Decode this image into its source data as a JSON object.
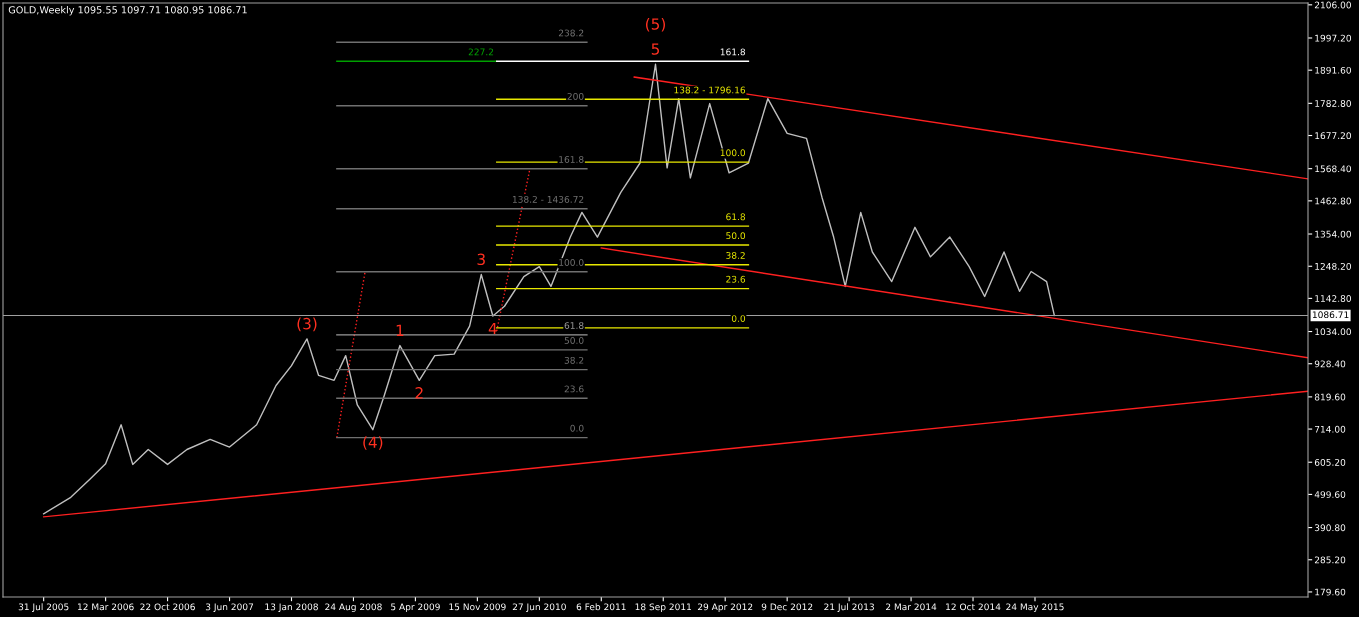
{
  "chart_data": {
    "type": "line",
    "title": "GOLD,Weekly 1095.55 1097.71 1080.95 1086.71",
    "xlim": [
      "2005-03-06",
      "2018-02-04"
    ],
    "ylim": [
      163,
      2112
    ],
    "xticks": [
      {
        "value": "2005-07-31",
        "label": "31 Jul 2005"
      },
      {
        "value": "2006-03-12",
        "label": "12 Mar 2006"
      },
      {
        "value": "2006-10-22",
        "label": "22 Oct 2006"
      },
      {
        "value": "2007-06-03",
        "label": "3 Jun 2007"
      },
      {
        "value": "2008-01-13",
        "label": "13 Jan 2008"
      },
      {
        "value": "2008-08-24",
        "label": "24 Aug 2008"
      },
      {
        "value": "2009-04-05",
        "label": "5 Apr 2009"
      },
      {
        "value": "2009-11-15",
        "label": "15 Nov 2009"
      },
      {
        "value": "2010-06-27",
        "label": "27 Jun 2010"
      },
      {
        "value": "2011-02-06",
        "label": "6 Feb 2011"
      },
      {
        "value": "2011-09-18",
        "label": "18 Sep 2011"
      },
      {
        "value": "2012-04-29",
        "label": "29 Apr 2012"
      },
      {
        "value": "2012-12-09",
        "label": "9 Dec 2012"
      },
      {
        "value": "2013-07-21",
        "label": "21 Jul 2013"
      },
      {
        "value": "2014-03-02",
        "label": "2 Mar 2014"
      },
      {
        "value": "2014-10-12",
        "label": "12 Oct 2014"
      },
      {
        "value": "2015-05-24",
        "label": "24 May 2015"
      }
    ],
    "yticks": [
      {
        "value": 2106,
        "label": "2106.00"
      },
      {
        "value": 1997.2,
        "label": "1997.20"
      },
      {
        "value": 1891.6,
        "label": "1891.60"
      },
      {
        "value": 1782.8,
        "label": "1782.80"
      },
      {
        "value": 1677.2,
        "label": "1677.20"
      },
      {
        "value": 1568.4,
        "label": "1568.40"
      },
      {
        "value": 1462.8,
        "label": "1462.80"
      },
      {
        "value": 1354,
        "label": "1354.00"
      },
      {
        "value": 1248.2,
        "label": "1248.20"
      },
      {
        "value": 1142.8,
        "label": "1142.80"
      },
      {
        "value": 1034,
        "label": "1034.00"
      },
      {
        "value": 928.4,
        "label": "928.40"
      },
      {
        "value": 819.6,
        "label": "819.60"
      },
      {
        "value": 714,
        "label": "714.00"
      },
      {
        "value": 605.2,
        "label": "605.20"
      },
      {
        "value": 499.6,
        "label": "499.60"
      },
      {
        "value": 390.8,
        "label": "390.80"
      },
      {
        "value": 285.2,
        "label": "285.20"
      },
      {
        "value": 179.6,
        "label": "179.60"
      }
    ],
    "grid": false,
    "marker": "none",
    "series": [
      {
        "color": "#c0c0c0",
        "x": [
          "2005-07-31",
          "2005-11-06",
          "2006-01-15",
          "2006-03-12",
          "2006-05-07",
          "2006-06-18",
          "2006-08-13",
          "2006-10-22",
          "2006-12-31",
          "2007-03-25",
          "2007-06-03",
          "2007-09-09",
          "2007-11-18",
          "2008-01-13",
          "2008-03-09",
          "2008-04-20",
          "2008-06-15",
          "2008-07-27",
          "2008-09-07",
          "2008-11-02",
          "2008-12-14",
          "2009-02-08",
          "2009-04-19",
          "2009-06-14",
          "2009-08-23",
          "2009-10-18",
          "2009-11-29",
          "2010-01-10",
          "2010-02-21",
          "2010-05-02",
          "2010-06-27",
          "2010-08-08",
          "2010-10-17",
          "2010-11-28",
          "2011-01-23",
          "2011-04-17",
          "2011-06-26",
          "2011-08-21",
          "2011-10-02",
          "2011-11-13",
          "2011-12-25",
          "2012-03-04",
          "2012-05-13",
          "2012-07-22",
          "2012-09-30",
          "2012-12-09",
          "2013-02-17",
          "2013-04-14",
          "2013-05-26",
          "2013-07-07",
          "2013-09-01",
          "2013-10-13",
          "2013-12-22",
          "2014-03-16",
          "2014-05-11",
          "2014-07-20",
          "2014-09-28",
          "2014-11-23",
          "2015-02-01",
          "2015-03-29",
          "2015-05-10",
          "2015-07-05",
          "2015-08-02"
        ],
        "values": [
          436,
          490,
          550,
          600,
          728,
          598,
          647,
          598,
          647,
          680,
          655,
          728,
          857,
          922,
          1010,
          890,
          874,
          955,
          793,
          712,
          826,
          988,
          874,
          955,
          960,
          1052,
          1221,
          1085,
          1117,
          1214,
          1247,
          1182,
          1344,
          1425,
          1344,
          1490,
          1587,
          1911,
          1571,
          1798,
          1538,
          1782,
          1555,
          1587,
          1798,
          1684,
          1668,
          1474,
          1344,
          1182,
          1425,
          1295,
          1198,
          1376,
          1279,
          1344,
          1247,
          1149,
          1295,
          1166,
          1231,
          1198,
          1087
        ]
      },
      {
        "color": "#ff2020",
        "x": [
          "2005-07-31",
          "2018-02-04"
        ],
        "values": [
          426,
          838
        ]
      },
      {
        "color": "#ff2020",
        "x": [
          "2011-02-06",
          "2018-02-04"
        ],
        "values": [
          1308,
          948
        ]
      },
      {
        "color": "#ff2020",
        "x": [
          "2011-06-05",
          "2018-02-04"
        ],
        "values": [
          1869,
          1535
        ]
      },
      {
        "color": "#ff2020",
        "line_style": "dotted",
        "x": [
          "2008-06-25",
          "2008-10-05"
        ],
        "values": [
          686,
          1230
        ]
      },
      {
        "color": "#ff2020",
        "line_style": "dotted",
        "x": [
          "2010-01-24",
          "2010-05-23"
        ],
        "values": [
          1036,
          1564
        ]
      },
      {
        "color": "#707070",
        "x": [
          "2008-06-25",
          "2010-12-16"
        ],
        "values": [
          1983,
          1983
        ]
      },
      {
        "color": "#00a000",
        "x": [
          "2008-06-25",
          "2010-01-24"
        ],
        "values": [
          1921,
          1921
        ]
      },
      {
        "color": "#707070",
        "x": [
          "2008-06-25",
          "2010-12-16"
        ],
        "values": [
          1775,
          1775
        ]
      },
      {
        "color": "#707070",
        "x": [
          "2008-06-25",
          "2010-12-16"
        ],
        "values": [
          1568,
          1568
        ]
      },
      {
        "color": "#707070",
        "x": [
          "2008-06-25",
          "2010-12-16"
        ],
        "values": [
          1437,
          1437
        ]
      },
      {
        "color": "#707070",
        "x": [
          "2008-06-25",
          "2010-12-16"
        ],
        "values": [
          1230,
          1230
        ]
      },
      {
        "color": "#9a9a9a",
        "x": [
          "2008-06-25",
          "2010-12-16"
        ],
        "values": [
          1023,
          1023
        ]
      },
      {
        "color": "#707070",
        "x": [
          "2008-06-25",
          "2010-12-16"
        ],
        "values": [
          974,
          974
        ]
      },
      {
        "color": "#707070",
        "x": [
          "2008-06-25",
          "2010-12-16"
        ],
        "values": [
          909,
          909
        ]
      },
      {
        "color": "#707070",
        "x": [
          "2008-06-25",
          "2010-12-16"
        ],
        "values": [
          815,
          815
        ]
      },
      {
        "color": "#707070",
        "x": [
          "2008-06-25",
          "2010-12-16"
        ],
        "values": [
          686,
          686
        ]
      },
      {
        "color": "#ffffff",
        "x": [
          "2010-01-24",
          "2012-07-22"
        ],
        "values": [
          1921,
          1921
        ]
      },
      {
        "color": "#e8e800",
        "x": [
          "2010-01-24",
          "2012-07-22"
        ],
        "values": [
          1796,
          1796
        ]
      },
      {
        "color": "#e8e800",
        "x": [
          "2010-01-24",
          "2012-07-22"
        ],
        "values": [
          1590,
          1590
        ]
      },
      {
        "color": "#e8e800",
        "x": [
          "2010-01-24",
          "2012-07-22"
        ],
        "values": [
          1380,
          1380
        ]
      },
      {
        "color": "#e8e800",
        "x": [
          "2010-01-24",
          "2012-07-22"
        ],
        "values": [
          1318,
          1318
        ]
      },
      {
        "color": "#e8e800",
        "x": [
          "2010-01-24",
          "2012-07-22"
        ],
        "values": [
          1253,
          1253
        ]
      },
      {
        "color": "#e8e800",
        "x": [
          "2010-01-24",
          "2012-07-22"
        ],
        "values": [
          1175,
          1175
        ]
      },
      {
        "color": "#e8e800",
        "x": [
          "2010-01-24",
          "2012-07-22"
        ],
        "values": [
          1046,
          1046
        ]
      }
    ],
    "ref_lines": [
      {
        "axis": "y",
        "value": 1086.71,
        "label": "1086.71",
        "color": "#a0a0a0"
      }
    ],
    "annotations": [
      {
        "text": "(3)",
        "x": "2008-03-09",
        "y": 1010
      },
      {
        "text": "(4)",
        "x": "2008-11-02",
        "y": 712
      },
      {
        "text": "(5)",
        "x": "2011-08-21",
        "y": 1911
      },
      {
        "text": "1",
        "x": "2009-02-08",
        "y": 988
      },
      {
        "text": "2",
        "x": "2009-04-19",
        "y": 874
      },
      {
        "text": "3",
        "x": "2009-11-29",
        "y": 1221
      },
      {
        "text": "4",
        "x": "2010-01-10",
        "y": 1085
      },
      {
        "text": "5",
        "x": "2011-08-21",
        "y": 1911
      },
      {
        "text": "238.2",
        "x": "2010-12-16",
        "y": 1983
      },
      {
        "text": "227.2",
        "x": "2010-01-24",
        "y": 1921
      },
      {
        "text": "200",
        "x": "2010-12-16",
        "y": 1775
      },
      {
        "text": "161.8",
        "x": "2010-12-16",
        "y": 1568
      },
      {
        "text": "138.2 - 1436.72",
        "x": "2010-12-16",
        "y": 1437
      },
      {
        "text": "100.0",
        "x": "2010-12-16",
        "y": 1230
      },
      {
        "text": "61.8",
        "x": "2010-12-16",
        "y": 1023
      },
      {
        "text": "50.0",
        "x": "2010-12-16",
        "y": 974
      },
      {
        "text": "38.2",
        "x": "2010-12-16",
        "y": 909
      },
      {
        "text": "23.6",
        "x": "2010-12-16",
        "y": 815
      },
      {
        "text": "0.0",
        "x": "2010-12-16",
        "y": 686
      },
      {
        "text": "161.8",
        "x": "2012-07-22",
        "y": 1921
      },
      {
        "text": "138.2 - 1796.16",
        "x": "2012-07-22",
        "y": 1796
      },
      {
        "text": "100.0",
        "x": "2012-07-22",
        "y": 1590
      },
      {
        "text": "61.8",
        "x": "2012-07-22",
        "y": 1380
      },
      {
        "text": "50.0",
        "x": "2012-07-22",
        "y": 1318
      },
      {
        "text": "38.2",
        "x": "2012-07-22",
        "y": 1253
      },
      {
        "text": "23.6",
        "x": "2012-07-22",
        "y": 1175
      },
      {
        "text": "0.0",
        "x": "2012-07-22",
        "y": 1046
      }
    ]
  }
}
